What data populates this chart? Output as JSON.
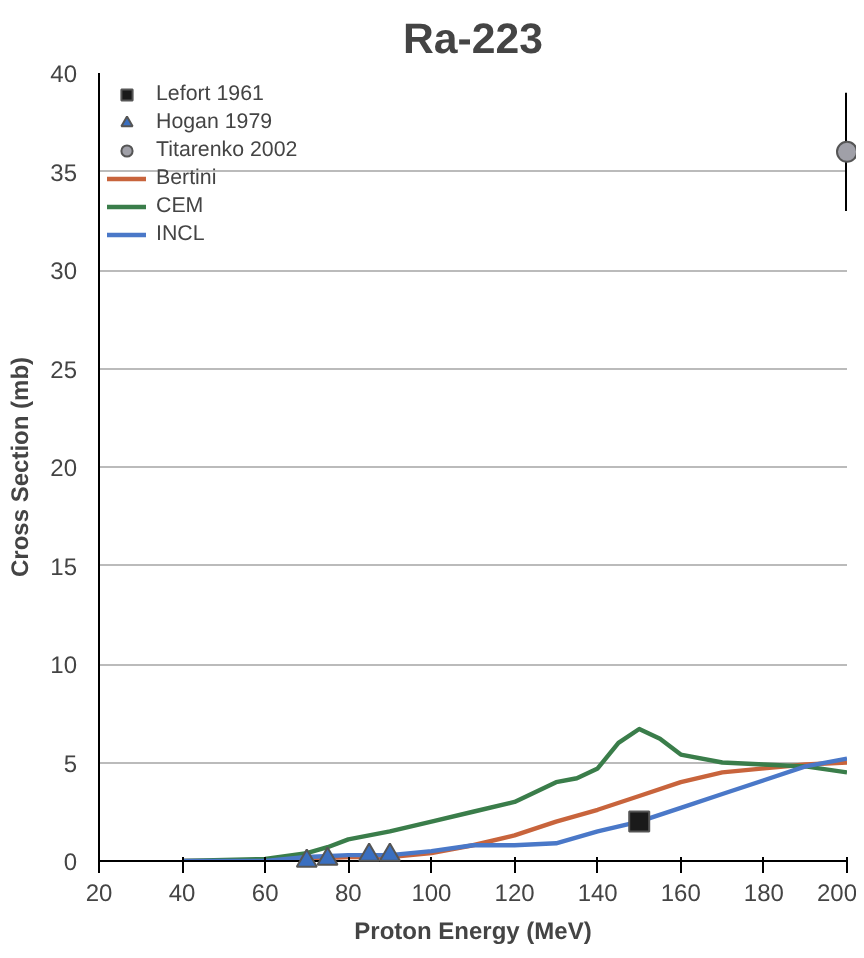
{
  "chart_data": {
    "type": "line",
    "title": "Ra-223",
    "xlabel": "Proton Energy (MeV)",
    "ylabel": "Cross Section (mb)",
    "xlim": [
      20,
      200
    ],
    "ylim": [
      0,
      40
    ],
    "xticks": [
      20,
      40,
      60,
      80,
      100,
      120,
      140,
      160,
      180,
      200
    ],
    "yticks": [
      0,
      5,
      10,
      15,
      20,
      25,
      30,
      35,
      40
    ],
    "grid": "y",
    "legend": "top left",
    "series": [
      {
        "name": "Lefort 1961",
        "type": "scatter",
        "marker": "square",
        "color": "#1a1a1a",
        "x": [
          150
        ],
        "values": [
          2
        ]
      },
      {
        "name": "Hogan 1979",
        "type": "scatter",
        "marker": "triangle",
        "color": "#3a6fc0",
        "x": [
          70,
          75,
          85,
          90
        ],
        "values": [
          0,
          0.1,
          0.3,
          0.3
        ]
      },
      {
        "name": "Titarenko 2002",
        "type": "scatter",
        "marker": "circle",
        "color": "#a0a0a8",
        "x": [
          200
        ],
        "values": [
          36
        ],
        "errors": [
          3
        ]
      },
      {
        "name": "Bertini",
        "color": "#c8643c",
        "x": [
          40,
          60,
          70,
          80,
          90,
          100,
          110,
          120,
          130,
          140,
          150,
          160,
          170,
          180,
          190,
          200
        ],
        "values": [
          0,
          0,
          0.1,
          0.2,
          0.2,
          0.4,
          0.8,
          1.3,
          2,
          2.6,
          3.3,
          4,
          4.5,
          4.7,
          4.9,
          5
        ]
      },
      {
        "name": "CEM",
        "color": "#3a7d4a",
        "x": [
          40,
          60,
          70,
          75,
          80,
          90,
          100,
          110,
          120,
          130,
          135,
          140,
          145,
          150,
          155,
          160,
          170,
          180,
          190,
          200
        ],
        "values": [
          0,
          0.1,
          0.4,
          0.7,
          1.1,
          1.5,
          2,
          2.5,
          3,
          4,
          4.2,
          4.7,
          6,
          6.7,
          6.2,
          5.4,
          5,
          4.9,
          4.8,
          4.5
        ]
      },
      {
        "name": "INCL",
        "color": "#4a78c8",
        "x": [
          40,
          60,
          70,
          80,
          90,
          100,
          110,
          120,
          130,
          140,
          150,
          160,
          170,
          180,
          190,
          200
        ],
        "values": [
          0,
          0,
          0.2,
          0.3,
          0.3,
          0.5,
          0.8,
          0.8,
          0.9,
          1.5,
          2,
          2.7,
          3.4,
          4.1,
          4.8,
          5.2
        ]
      }
    ]
  }
}
